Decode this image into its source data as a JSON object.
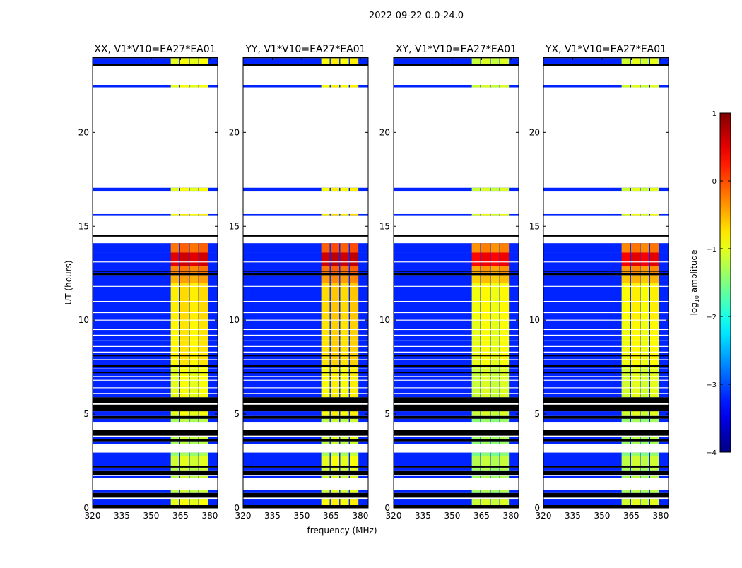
{
  "chart_data": {
    "type": "heatmap",
    "suptitle": "2022-09-22 0.0-24.0",
    "xlabel": "frequency (MHz)",
    "ylabel": "UT (hours)",
    "xlim": [
      320,
      384
    ],
    "ylim": [
      0,
      24
    ],
    "xticks": [
      "320",
      "335",
      "350",
      "365",
      "380"
    ],
    "yticks": [
      "0",
      "5",
      "10",
      "15",
      "20"
    ],
    "panels": [
      {
        "title": "XX, V1*V10=EA27*EA01",
        "hot_offset": 0.0
      },
      {
        "title": "YY, V1*V10=EA27*EA01",
        "hot_offset": 0.1
      },
      {
        "title": "XY, V1*V10=EA27*EA01",
        "hot_offset": -0.15
      },
      {
        "title": "YX, V1*V10=EA27*EA01",
        "hot_offset": -0.1
      }
    ],
    "colorbar": {
      "label": "log",
      "label_sub": "10",
      "label_rest": " amplitude",
      "range": [
        -4,
        1
      ],
      "ticks": [
        "1",
        "0",
        "−1",
        "−2",
        "−3",
        "−4"
      ],
      "colormap": "jet"
    },
    "background_level": -3.2,
    "hot_band_mhz": [
      [
        360,
        364.3
      ],
      [
        364.8,
        369.2
      ],
      [
        369.7,
        374.1
      ],
      [
        374.6,
        379.0
      ]
    ],
    "time_segments_hours": [
      {
        "t": [
          0,
          0.15
        ],
        "kind": "flagged"
      },
      {
        "t": [
          0.15,
          0.45
        ],
        "kind": "data",
        "hot": -1.0
      },
      {
        "t": [
          0.45,
          0.55
        ],
        "kind": "empty"
      },
      {
        "t": [
          0.55,
          0.8
        ],
        "kind": "flagged"
      },
      {
        "t": [
          0.8,
          0.95
        ],
        "kind": "data",
        "hot": -1.2
      },
      {
        "t": [
          0.95,
          1.6
        ],
        "kind": "empty"
      },
      {
        "t": [
          1.6,
          1.7
        ],
        "kind": "data",
        "hot": -1.2
      },
      {
        "t": [
          1.75,
          2.0
        ],
        "kind": "flagged"
      },
      {
        "t": [
          2.0,
          2.15
        ],
        "kind": "data",
        "hot": -1.2
      },
      {
        "t": [
          2.15,
          2.25
        ],
        "kind": "flagged"
      },
      {
        "t": [
          2.25,
          2.75
        ],
        "kind": "data",
        "hot": -1.1
      },
      {
        "t": [
          2.75,
          2.95
        ],
        "kind": "data",
        "hot": -1.4
      },
      {
        "t": [
          2.95,
          3.4
        ],
        "kind": "empty"
      },
      {
        "t": [
          3.4,
          3.55
        ],
        "kind": "data",
        "hot": -1.3
      },
      {
        "t": [
          3.55,
          3.65
        ],
        "kind": "flagged"
      },
      {
        "t": [
          3.65,
          3.8
        ],
        "kind": "data",
        "hot": -1.2
      },
      {
        "t": [
          3.85,
          4.15
        ],
        "kind": "flagged"
      },
      {
        "t": [
          4.15,
          4.55
        ],
        "kind": "empty"
      },
      {
        "t": [
          4.55,
          4.75
        ],
        "kind": "data",
        "hot": -1.3
      },
      {
        "t": [
          4.75,
          4.9
        ],
        "kind": "flagged"
      },
      {
        "t": [
          4.9,
          5.15
        ],
        "kind": "data",
        "hot": -1.0
      },
      {
        "t": [
          5.15,
          5.5
        ],
        "kind": "flagged"
      },
      {
        "t": [
          5.6,
          5.9
        ],
        "kind": "flagged"
      },
      {
        "t": [
          5.9,
          7.5
        ],
        "kind": "data",
        "hot": -1.0
      },
      {
        "t": [
          7.5,
          7.6
        ],
        "kind": "flagged"
      },
      {
        "t": [
          7.6,
          10.0
        ],
        "kind": "data",
        "hot": -0.85
      },
      {
        "t": [
          10.0,
          12.0
        ],
        "kind": "data",
        "hot": -0.8
      },
      {
        "t": [
          12.0,
          12.4
        ],
        "kind": "data",
        "hot": -0.5
      },
      {
        "t": [
          12.4,
          12.5
        ],
        "kind": "flagged"
      },
      {
        "t": [
          12.5,
          12.9
        ],
        "kind": "data",
        "hot": -0.3
      },
      {
        "t": [
          12.9,
          13.6
        ],
        "kind": "data",
        "hot": 0.5
      },
      {
        "t": [
          13.6,
          14.1
        ],
        "kind": "data",
        "hot": -0.2
      },
      {
        "t": [
          14.1,
          14.45
        ],
        "kind": "empty"
      },
      {
        "t": [
          14.45,
          14.55
        ],
        "kind": "flagged"
      },
      {
        "t": [
          14.55,
          15.55
        ],
        "kind": "empty"
      },
      {
        "t": [
          15.55,
          15.65
        ],
        "kind": "data",
        "hot": -0.9
      },
      {
        "t": [
          15.65,
          16.85
        ],
        "kind": "empty"
      },
      {
        "t": [
          16.85,
          17.05
        ],
        "kind": "data",
        "hot": -1.0
      },
      {
        "t": [
          17.05,
          22.4
        ],
        "kind": "empty"
      },
      {
        "t": [
          22.4,
          22.5
        ],
        "kind": "data",
        "hot": -1.0
      },
      {
        "t": [
          22.5,
          23.55
        ],
        "kind": "empty"
      },
      {
        "t": [
          23.55,
          23.65
        ],
        "kind": "flagged"
      },
      {
        "t": [
          23.65,
          23.95
        ],
        "kind": "data",
        "hot": -1.0
      },
      {
        "t": [
          23.95,
          24
        ],
        "kind": "flagged"
      }
    ],
    "gap_lines_hours": [
      6.1,
      6.4,
      6.8,
      7.0,
      7.2,
      7.4,
      7.9,
      8.1,
      8.3,
      8.6,
      8.9,
      9.2,
      9.5,
      10.0,
      10.4,
      11.0,
      11.8,
      12.6,
      13.1
    ]
  }
}
